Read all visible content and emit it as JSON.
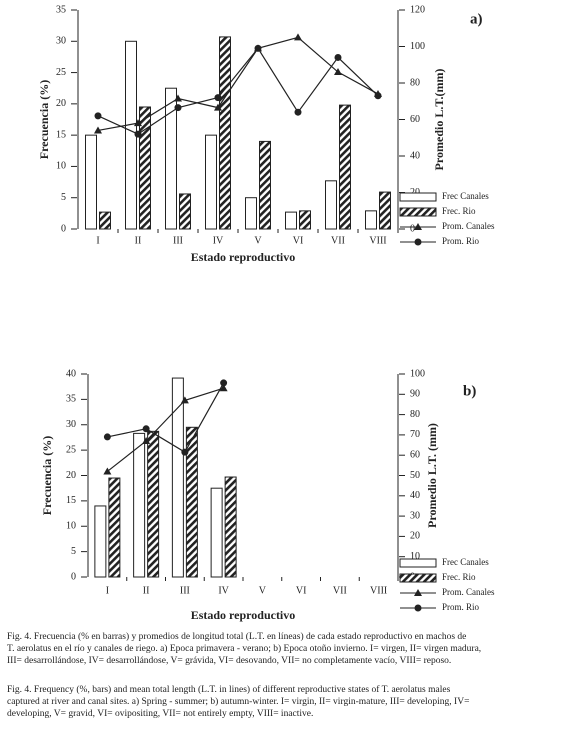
{
  "chart_data": [
    {
      "type": "combo",
      "panel_label": "a)",
      "xlabel": "Estado reproductivo",
      "ylabel": "Frecuencia (%)",
      "y2label": "Promedio L.T.(mm)",
      "categories": [
        "I",
        "II",
        "III",
        "IV",
        "V",
        "VI",
        "VII",
        "VIII"
      ],
      "ylim": [
        0,
        35
      ],
      "yticks": [
        0,
        5,
        10,
        15,
        20,
        25,
        30,
        35
      ],
      "y2lim": [
        0,
        120
      ],
      "y2ticks": [
        0,
        20,
        40,
        60,
        80,
        100,
        120
      ],
      "series": [
        {
          "name": "Frec Canales",
          "kind": "bar",
          "fill": "white",
          "color": "#222",
          "values": [
            15,
            30,
            22.5,
            15,
            5,
            2.7,
            7.7,
            2.9
          ]
        },
        {
          "name": "Frec. Rio",
          "kind": "bar",
          "fill": "hatch",
          "color": "#222",
          "values": [
            2.7,
            19.5,
            5.6,
            30.7,
            14,
            2.9,
            19.8,
            5.9
          ]
        },
        {
          "name": "Prom. Canales",
          "kind": "line",
          "marker": "triangle",
          "axis": "y2",
          "color": "#222",
          "values": [
            54,
            58,
            71.5,
            66.5,
            99,
            105,
            86,
            74
          ]
        },
        {
          "name": "Prom. Rio",
          "kind": "line",
          "marker": "circle",
          "axis": "y2",
          "color": "#222",
          "values": [
            62,
            52,
            66.5,
            72,
            99,
            64,
            94,
            73
          ]
        }
      ]
    },
    {
      "type": "combo",
      "panel_label": "b)",
      "xlabel": "Estado reproductivo",
      "ylabel": "Frecuencia (%)",
      "y2label": "Promedio L.T. (mm)",
      "categories": [
        "I",
        "II",
        "III",
        "IV",
        "V",
        "VI",
        "VII",
        "VIII"
      ],
      "ylim": [
        0,
        40
      ],
      "yticks": [
        0,
        5,
        10,
        15,
        20,
        25,
        30,
        35,
        40
      ],
      "y2lim": [
        0,
        100
      ],
      "y2ticks": [
        0,
        10,
        20,
        30,
        40,
        50,
        60,
        70,
        80,
        90,
        100
      ],
      "series": [
        {
          "name": "Frec Canales",
          "kind": "bar",
          "fill": "white",
          "color": "#222",
          "values": [
            14,
            28.3,
            39.2,
            17.5,
            null,
            null,
            null,
            null
          ]
        },
        {
          "name": "Frec. Rio",
          "kind": "bar",
          "fill": "hatch",
          "color": "#222",
          "values": [
            19.5,
            28.7,
            29.5,
            19.7,
            null,
            null,
            null,
            null
          ]
        },
        {
          "name": "Prom. Canales",
          "kind": "line",
          "marker": "triangle",
          "axis": "y2",
          "color": "#222",
          "values": [
            52,
            67,
            87,
            93,
            null,
            null,
            null,
            null
          ]
        },
        {
          "name": "Prom. Rio",
          "kind": "line",
          "marker": "circle",
          "axis": "y2",
          "color": "#222",
          "values": [
            69,
            73,
            61.5,
            95.6,
            null,
            null,
            null,
            null
          ]
        }
      ]
    }
  ],
  "caption": {
    "spanish": [
      "Fig. 4. Frecuencia (% en barras) y promedios de longitud total (L.T. en líneas) de cada estado reproductivo en machos de",
      "T. aerolatus en el río y canales de riego. a) Epoca primavera - verano; b) Epoca otoño invierno. I= virgen, II= virgen madura,",
      "III= desarrollándose, IV= desarrollándose, V= grávida, VI= desovando, VII= no completamente vacío, VIII= reposo."
    ],
    "english": [
      "Fig. 4. Frequency (%, bars) and mean total length (L.T. in lines) of different reproductive states of T. aerolatus males",
      "captured at river and canal sites. a) Spring - summer; b) autumn-winter. I= virgin, II= virgin-mature, III= developing, IV=",
      "developing, V= gravid, VI= ovipositing, VII= not entirely empty, VIII= inactive."
    ]
  }
}
